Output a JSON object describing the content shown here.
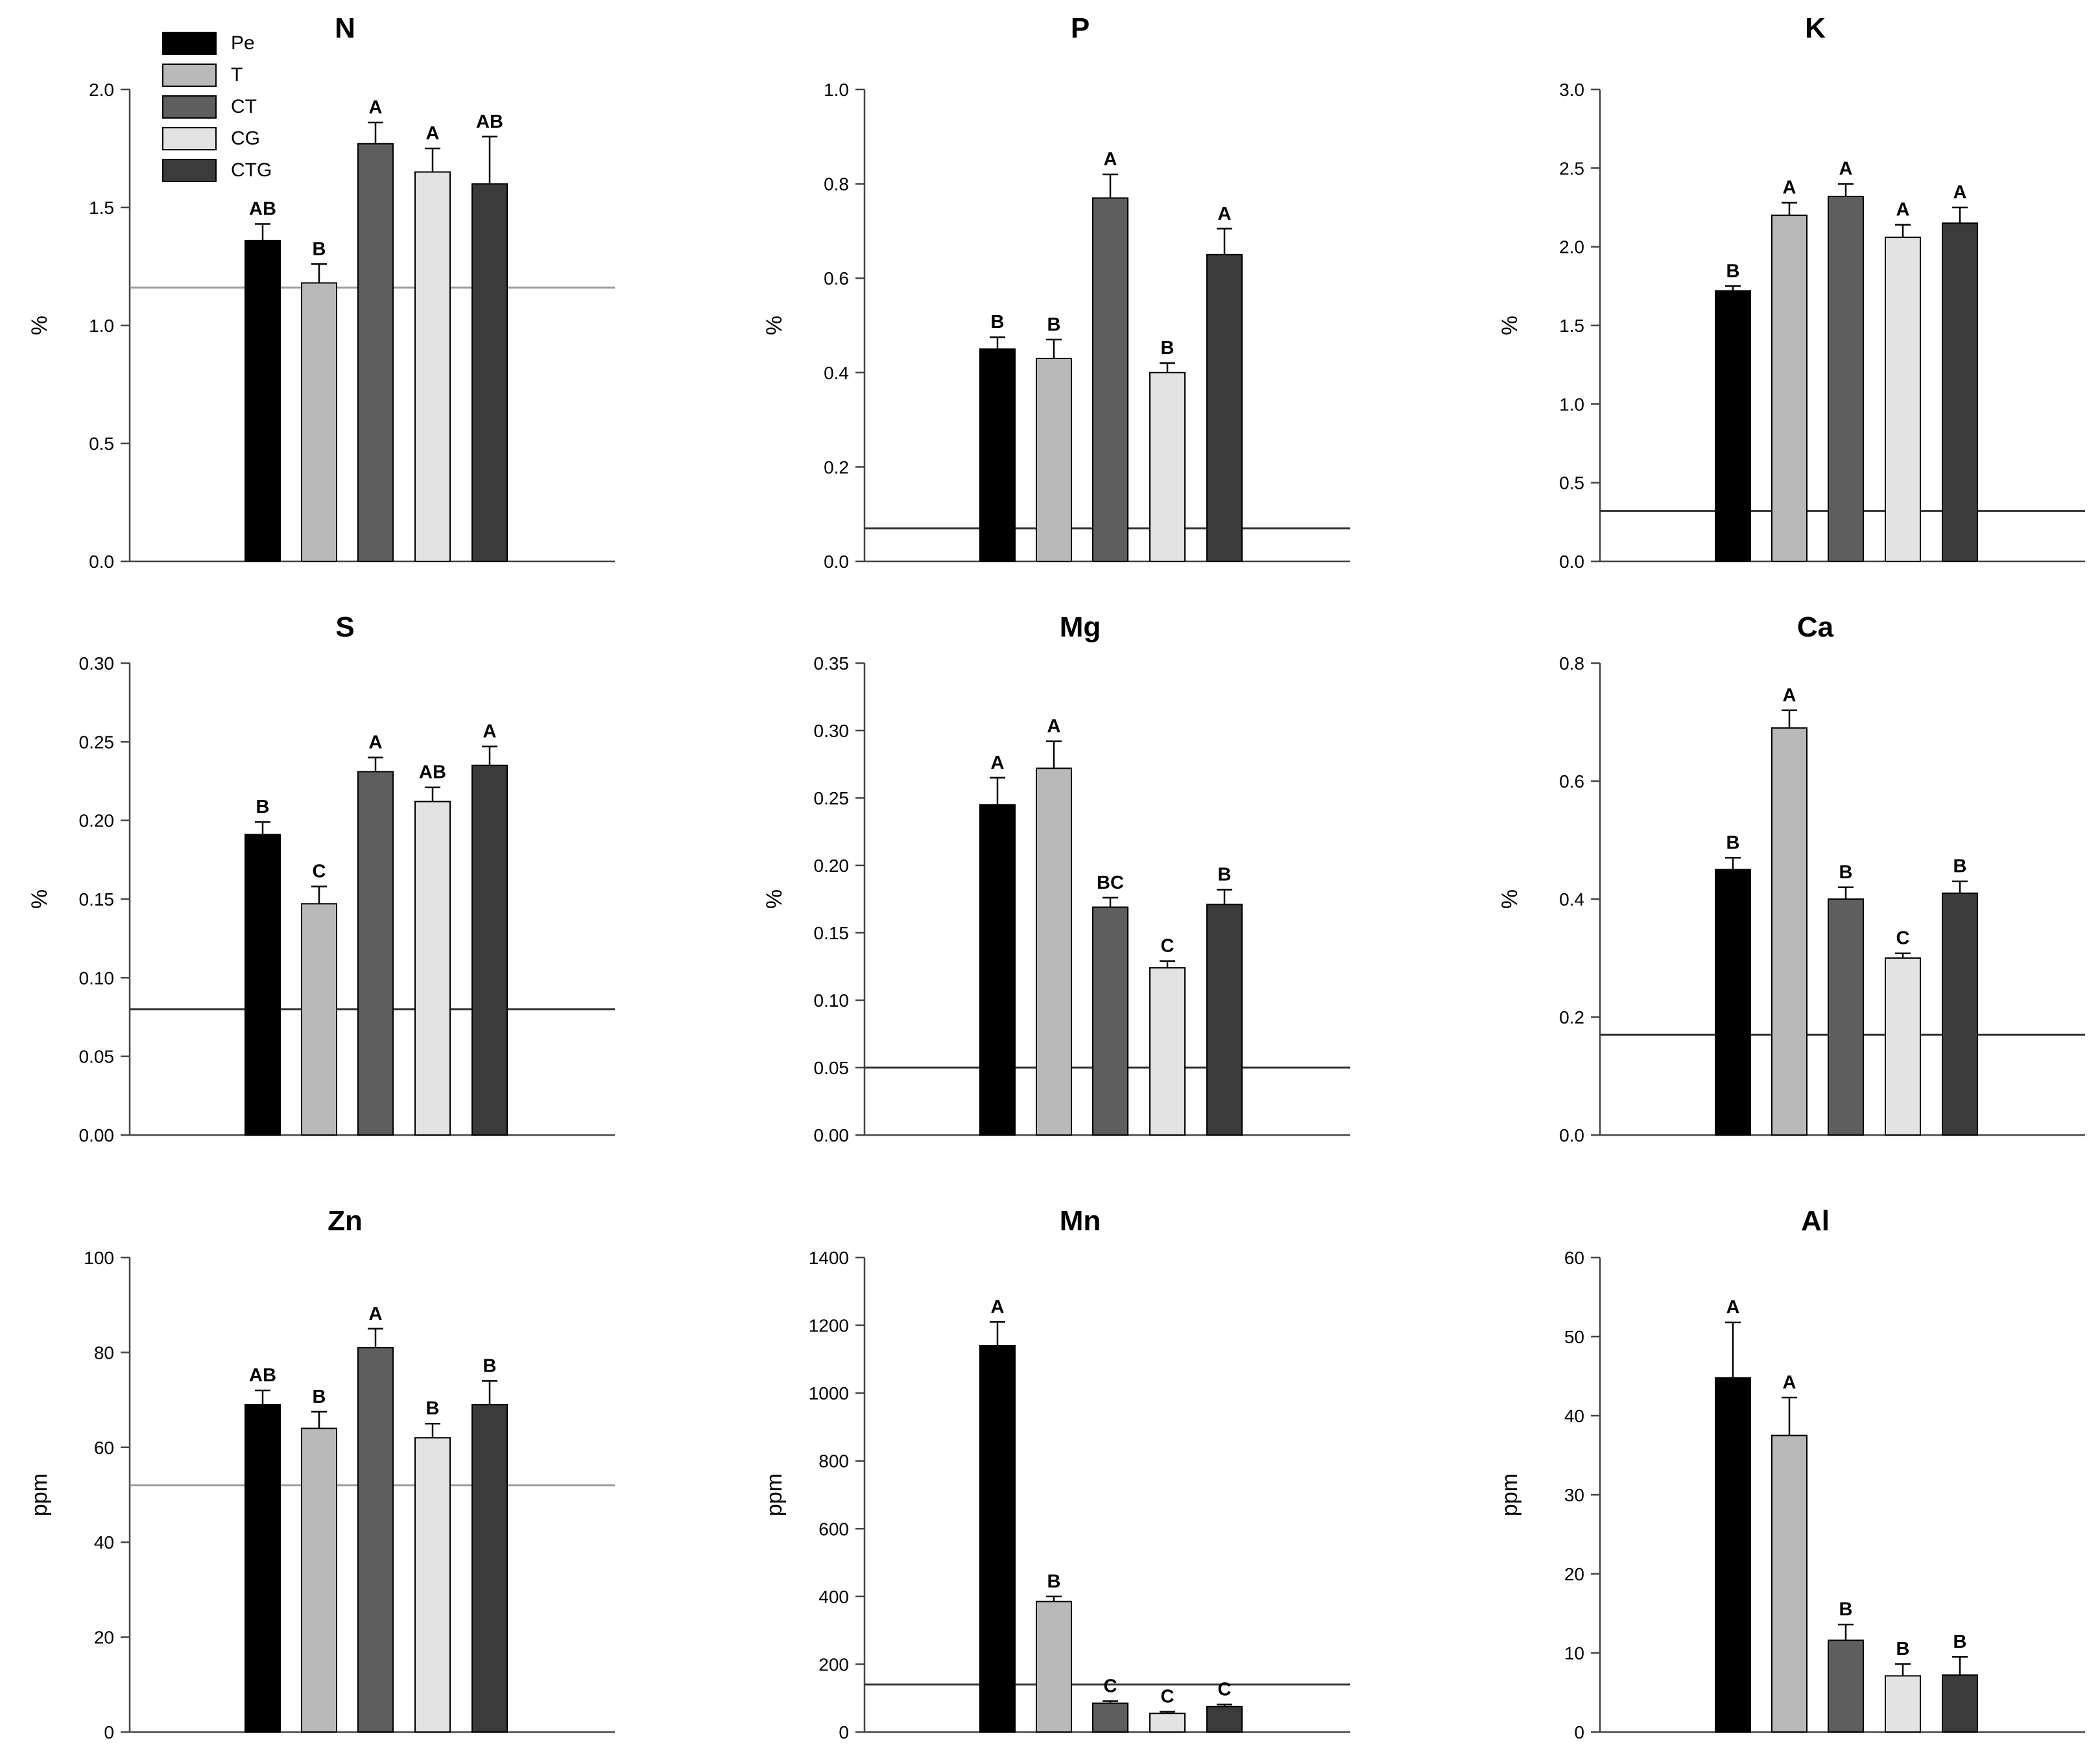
{
  "colors": {
    "Pe": "#000000",
    "T": "#b9b9b9",
    "CT": "#5e5e5e",
    "CG": "#e3e3e3",
    "CTG": "#3b3b3b",
    "reference_line_dark": "#333333",
    "reference_line_light": "#9a9a9a"
  },
  "legend": [
    {
      "key": "Pe",
      "label": "Pe"
    },
    {
      "key": "T",
      "label": "T"
    },
    {
      "key": "CT",
      "label": "CT"
    },
    {
      "key": "CG",
      "label": "CG"
    },
    {
      "key": "CTG",
      "label": "CTG"
    }
  ],
  "chart_data": [
    {
      "type": "bar",
      "title": "N",
      "ylabel": "%",
      "ylim": [
        0,
        2.0
      ],
      "yticks": [
        "0.0",
        "0.5",
        "1.0",
        "1.5",
        "2.0"
      ],
      "categories": [
        "Pe",
        "T",
        "CT",
        "CG",
        "CTG"
      ],
      "values": [
        1.36,
        1.18,
        1.77,
        1.65,
        1.6
      ],
      "errors": [
        0.07,
        0.08,
        0.09,
        0.1,
        0.2
      ],
      "letters": [
        "AB",
        "B",
        "A",
        "A",
        "AB"
      ],
      "reference_line": 1.16,
      "reference_style": "light"
    },
    {
      "type": "bar",
      "title": "P",
      "ylabel": "%",
      "ylim": [
        0,
        1.0
      ],
      "yticks": [
        "0.0",
        "0.2",
        "0.4",
        "0.6",
        "0.8",
        "1.0"
      ],
      "categories": [
        "Pe",
        "T",
        "CT",
        "CG",
        "CTG"
      ],
      "values": [
        0.45,
        0.43,
        0.77,
        0.4,
        0.65
      ],
      "errors": [
        0.025,
        0.04,
        0.05,
        0.02,
        0.055
      ],
      "letters": [
        "B",
        "B",
        "A",
        "B",
        "A"
      ],
      "reference_line": 0.07,
      "reference_style": "dark"
    },
    {
      "type": "bar",
      "title": "K",
      "ylabel": "%",
      "ylim": [
        0,
        3.0
      ],
      "yticks": [
        "0.0",
        "0.5",
        "1.0",
        "1.5",
        "2.0",
        "2.5",
        "3.0"
      ],
      "categories": [
        "Pe",
        "T",
        "CT",
        "CG",
        "CTG"
      ],
      "values": [
        1.72,
        2.2,
        2.32,
        2.06,
        2.15
      ],
      "errors": [
        0.03,
        0.08,
        0.08,
        0.08,
        0.1
      ],
      "letters": [
        "B",
        "A",
        "A",
        "A",
        "A"
      ],
      "reference_line": 0.32,
      "reference_style": "dark"
    },
    {
      "type": "bar",
      "title": "S",
      "ylabel": "%",
      "ylim": [
        0,
        0.3
      ],
      "yticks": [
        "0.00",
        "0.05",
        "0.10",
        "0.15",
        "0.20",
        "0.25",
        "0.30"
      ],
      "categories": [
        "Pe",
        "T",
        "CT",
        "CG",
        "CTG"
      ],
      "values": [
        0.191,
        0.147,
        0.231,
        0.212,
        0.235
      ],
      "errors": [
        0.008,
        0.011,
        0.009,
        0.009,
        0.012
      ],
      "letters": [
        "B",
        "C",
        "A",
        "AB",
        "A"
      ],
      "reference_line": 0.08,
      "reference_style": "dark"
    },
    {
      "type": "bar",
      "title": "Mg",
      "ylabel": "%",
      "ylim": [
        0,
        0.35
      ],
      "yticks": [
        "0.00",
        "0.05",
        "0.10",
        "0.15",
        "0.20",
        "0.25",
        "0.30",
        "0.35"
      ],
      "categories": [
        "Pe",
        "T",
        "CT",
        "CG",
        "CTG"
      ],
      "values": [
        0.245,
        0.272,
        0.169,
        0.124,
        0.171
      ],
      "errors": [
        0.02,
        0.02,
        0.007,
        0.005,
        0.011
      ],
      "letters": [
        "A",
        "A",
        "BC",
        "C",
        "B"
      ],
      "reference_line": 0.05,
      "reference_style": "dark"
    },
    {
      "type": "bar",
      "title": "Ca",
      "ylabel": "%",
      "ylim": [
        0,
        0.8
      ],
      "yticks": [
        "0.0",
        "0.2",
        "0.4",
        "0.6",
        "0.8"
      ],
      "categories": [
        "Pe",
        "T",
        "CT",
        "CG",
        "CTG"
      ],
      "values": [
        0.45,
        0.69,
        0.4,
        0.3,
        0.41
      ],
      "errors": [
        0.02,
        0.03,
        0.02,
        0.008,
        0.02
      ],
      "letters": [
        "B",
        "A",
        "B",
        "C",
        "B"
      ],
      "reference_line": 0.17,
      "reference_style": "dark"
    },
    {
      "type": "bar",
      "title": "Zn",
      "ylabel": "ppm",
      "ylim": [
        0,
        100
      ],
      "yticks": [
        "0",
        "20",
        "40",
        "60",
        "80",
        "100"
      ],
      "categories": [
        "Pe",
        "T",
        "CT",
        "CG",
        "CTG"
      ],
      "values": [
        69,
        64,
        81,
        62,
        69
      ],
      "errors": [
        3,
        3.5,
        4,
        3,
        5
      ],
      "letters": [
        "AB",
        "B",
        "A",
        "B",
        "B"
      ],
      "reference_line": 52,
      "reference_style": "light"
    },
    {
      "type": "bar",
      "title": "Mn",
      "ylabel": "ppm",
      "ylim": [
        0,
        1400
      ],
      "yticks": [
        "0",
        "200",
        "400",
        "600",
        "800",
        "1000",
        "1200",
        "1400"
      ],
      "categories": [
        "Pe",
        "T",
        "CT",
        "CG",
        "CTG"
      ],
      "values": [
        1140,
        385,
        85,
        55,
        75
      ],
      "errors": [
        70,
        15,
        6,
        5,
        6
      ],
      "letters": [
        "A",
        "B",
        "C",
        "C",
        "C"
      ],
      "reference_line": 140,
      "reference_style": "dark"
    },
    {
      "type": "bar",
      "title": "Al",
      "ylabel": "ppm",
      "ylim": [
        0,
        60
      ],
      "yticks": [
        "0",
        "10",
        "20",
        "30",
        "40",
        "50",
        "60"
      ],
      "categories": [
        "Pe",
        "T",
        "CT",
        "CG",
        "CTG"
      ],
      "values": [
        44.8,
        37.5,
        11.6,
        7.1,
        7.2
      ],
      "errors": [
        7,
        4.8,
        2,
        1.5,
        2.3
      ],
      "letters": [
        "A",
        "A",
        "B",
        "B",
        "B"
      ],
      "reference_line": null,
      "reference_style": "dark"
    }
  ]
}
